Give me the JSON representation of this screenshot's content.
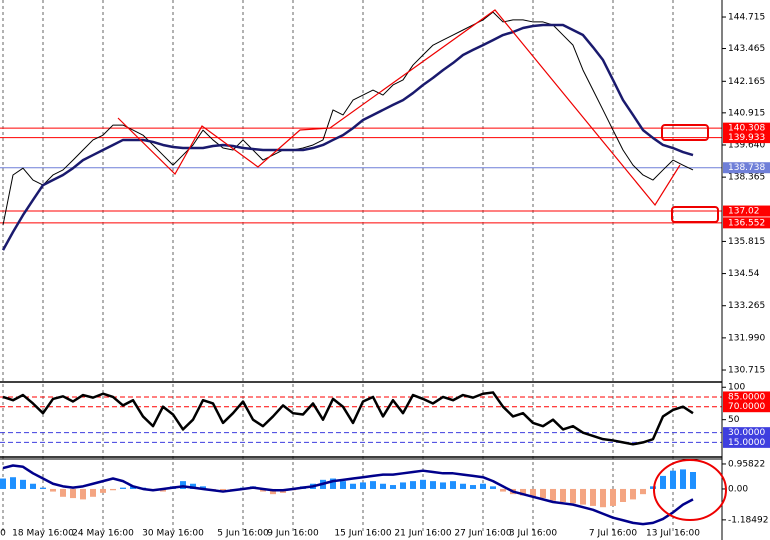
{
  "chart_data": [
    {
      "type": "line",
      "categories": [
        "0",
        null,
        null,
        null,
        "18 May 16:00",
        null,
        null,
        null,
        null,
        null,
        "24 May 16:00",
        null,
        null,
        null,
        null,
        null,
        null,
        "30 May 16:00",
        null,
        null,
        null,
        null,
        null,
        null,
        "5 Jun 16:00",
        null,
        null,
        null,
        null,
        "9 Jun 16:00",
        null,
        null,
        null,
        null,
        null,
        null,
        "15 Jun 16:00",
        null,
        null,
        null,
        null,
        null,
        "21 Jun 16:00",
        null,
        null,
        null,
        null,
        null,
        "27 Jun 16:00",
        null,
        null,
        null,
        null,
        "3 Jul 16:00",
        null,
        null,
        null,
        null,
        null,
        null,
        null,
        "7 Jul 16:00",
        null,
        null,
        null,
        null,
        null,
        "13 Jul 16:00",
        null,
        null
      ],
      "series": [
        {
          "color": "#000000",
          "values": [
            136.46,
            138.45,
            138.72,
            138.25,
            138.05,
            138.45,
            138.65,
            139.04,
            139.44,
            139.84,
            140.03,
            140.43,
            140.43,
            140.23,
            140.03,
            139.64,
            139.24,
            138.84,
            139.24,
            139.64,
            140.23,
            139.84,
            139.52,
            139.44,
            139.84,
            139.44,
            139.04,
            139.24,
            139.44,
            139.44,
            139.52,
            139.64,
            139.84,
            141.03,
            140.83,
            141.42,
            141.62,
            141.82,
            141.62,
            142.02,
            142.22,
            142.81,
            143.21,
            143.6,
            143.8,
            144.0,
            144.2,
            144.4,
            144.6,
            144.91,
            144.52,
            144.6,
            144.6,
            144.52,
            144.52,
            144.4,
            144.0,
            143.6,
            142.61,
            141.82,
            141.03,
            140.23,
            139.44,
            138.84,
            138.45,
            138.25,
            138.65,
            139.04,
            138.84,
            138.65
          ]
        },
        {
          "color": "#1a1a6e",
          "values": [
            135.47,
            136.19,
            136.86,
            137.46,
            138.05,
            138.25,
            138.45,
            138.72,
            139.04,
            139.24,
            139.44,
            139.64,
            139.84,
            139.84,
            139.84,
            139.76,
            139.64,
            139.56,
            139.52,
            139.52,
            139.52,
            139.6,
            139.64,
            139.6,
            139.52,
            139.48,
            139.44,
            139.44,
            139.44,
            139.44,
            139.44,
            139.52,
            139.64,
            139.84,
            140.03,
            140.31,
            140.63,
            140.83,
            141.03,
            141.23,
            141.42,
            141.7,
            142.02,
            142.3,
            142.61,
            142.89,
            143.21,
            143.41,
            143.6,
            143.8,
            144.0,
            144.12,
            144.28,
            144.36,
            144.4,
            144.4,
            144.4,
            144.2,
            144.0,
            143.52,
            143.01,
            142.22,
            141.42,
            140.83,
            140.23,
            139.92,
            139.64,
            139.52,
            139.36,
            139.24
          ]
        }
      ],
      "ylim": [
        130.24,
        145.39
      ],
      "yticks": [
        144.715,
        143.465,
        142.165,
        140.915,
        {
          "value": 139.64,
          "label": "139.640"
        },
        138.365,
        135.815,
        134.54,
        133.265,
        {
          "value": 131.99,
          "label": "131.990"
        },
        130.715
      ],
      "levels": [
        {
          "value": 140.308,
          "color": "#ff0000"
        },
        {
          "value": 139.933,
          "color": "#ff0000"
        },
        {
          "value": 138.738,
          "color": "#6f7fd8"
        },
        {
          "value": 137.02,
          "color": "#ff0000"
        },
        {
          "value": 136.552,
          "color": "#ff0000"
        }
      ]
    },
    {
      "type": "line",
      "series": [
        {
          "color": "#000000",
          "values": [
            85,
            80,
            88,
            75,
            60,
            82,
            86,
            78,
            88,
            84,
            90,
            85,
            72,
            80,
            55,
            40,
            70,
            58,
            35,
            50,
            80,
            75,
            45,
            60,
            78,
            50,
            40,
            55,
            72,
            60,
            58,
            75,
            50,
            82,
            70,
            45,
            78,
            85,
            55,
            80,
            60,
            88,
            82,
            75,
            85,
            80,
            88,
            84,
            90,
            92,
            70,
            55,
            60,
            45,
            40,
            50,
            35,
            40,
            30,
            25,
            20,
            18,
            15,
            12,
            15,
            20,
            55,
            65,
            70,
            60
          ]
        }
      ],
      "ylim": [
        -6,
        105
      ],
      "yticks": [
        100,
        50
      ],
      "levels": [
        {
          "value": 85,
          "label": "85.0000",
          "color": "#ff0000"
        },
        {
          "value": 70,
          "label": "70.0000",
          "color": "#ff0000"
        },
        {
          "value": 30,
          "label": "30.0000",
          "color": "#3f3fdf"
        },
        {
          "value": 15,
          "label": "15.0000",
          "color": "#3f3fdf"
        }
      ]
    },
    {
      "type": "bar",
      "values": [
        0.4,
        0.45,
        0.35,
        0.2,
        0.05,
        -0.1,
        -0.3,
        -0.35,
        -0.4,
        -0.3,
        -0.15,
        -0.05,
        0.05,
        0.1,
        0.05,
        -0.05,
        -0.1,
        0.1,
        0.3,
        0.2,
        0.1,
        -0.05,
        -0.1,
        -0.05,
        0.05,
        0.1,
        -0.1,
        -0.2,
        -0.15,
        -0.05,
        0.1,
        0.2,
        0.35,
        0.4,
        0.3,
        0.2,
        0.25,
        0.3,
        0.2,
        0.15,
        0.25,
        0.3,
        0.35,
        0.3,
        0.25,
        0.3,
        0.2,
        0.15,
        0.2,
        0.1,
        -0.1,
        -0.2,
        -0.25,
        -0.3,
        -0.35,
        -0.45,
        -0.5,
        -0.55,
        -0.6,
        -0.65,
        -0.7,
        -0.65,
        -0.5,
        -0.4,
        -0.2,
        0.1,
        0.5,
        0.7,
        0.75,
        0.65
      ],
      "colors": {
        "positive": "#1e90ff",
        "negative": "#f4a582"
      },
      "series": [
        {
          "color": "#00008b",
          "values": [
            0.8,
            0.9,
            0.85,
            0.6,
            0.4,
            0.2,
            0.1,
            0.05,
            0.1,
            0.2,
            0.3,
            0.4,
            0.3,
            0.1,
            0,
            -0.05,
            0,
            0.05,
            0.1,
            0.05,
            0,
            -0.05,
            -0.1,
            -0.05,
            0,
            0.05,
            0,
            -0.05,
            -0.05,
            0,
            0.05,
            0.1,
            0.2,
            0.3,
            0.35,
            0.4,
            0.45,
            0.5,
            0.55,
            0.55,
            0.6,
            0.65,
            0.7,
            0.65,
            0.6,
            0.6,
            0.55,
            0.5,
            0.45,
            0.3,
            0.1,
            -0.1,
            -0.2,
            -0.3,
            -0.4,
            -0.5,
            -0.55,
            -0.6,
            -0.7,
            -0.8,
            -0.95,
            -1.1,
            -1.2,
            -1.3,
            -1.35,
            -1.3,
            -1.15,
            -0.9,
            -0.6,
            -0.4
          ]
        }
      ],
      "ylim": [
        -1.65,
        1.11
      ],
      "yticks": [
        0.95822,
        {
          "value": 0,
          "label": "0.00"
        },
        -1.18492
      ]
    }
  ]
}
